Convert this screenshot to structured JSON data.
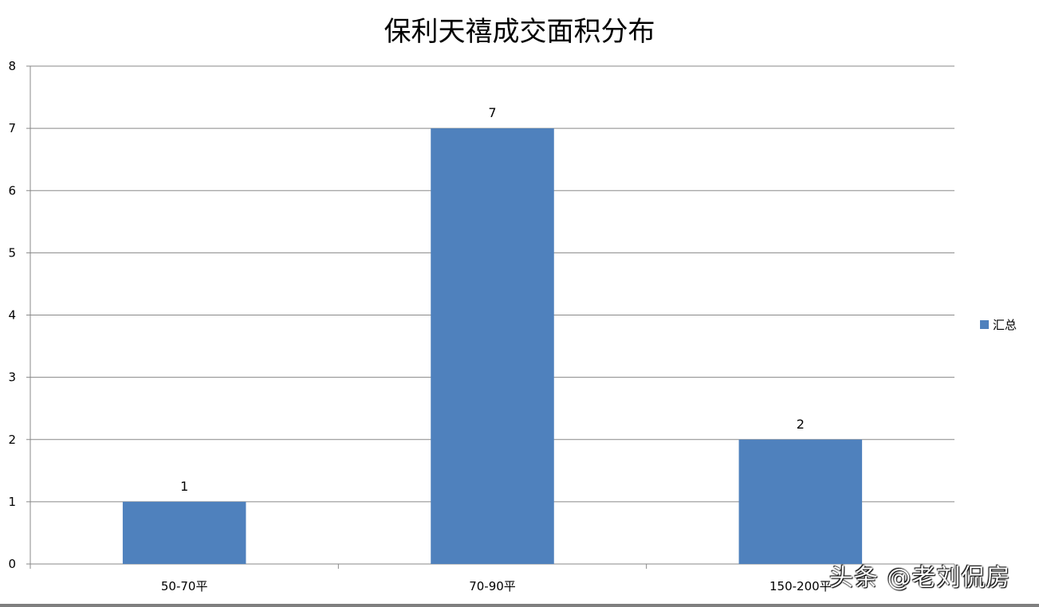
{
  "chart_data": {
    "type": "bar",
    "title": "保利天禧成交面积分布",
    "categories": [
      "50-70平",
      "70-90平",
      "150-200平"
    ],
    "series": [
      {
        "name": "汇总",
        "values": [
          1,
          7,
          2
        ],
        "color": "#4F81BD"
      }
    ],
    "ylim": [
      0,
      8
    ],
    "yticks": [
      0,
      1,
      2,
      3,
      4,
      5,
      6,
      7,
      8
    ],
    "grid": true,
    "legend": "right",
    "data_labels": true
  },
  "watermark": "头条 @老刘侃房"
}
